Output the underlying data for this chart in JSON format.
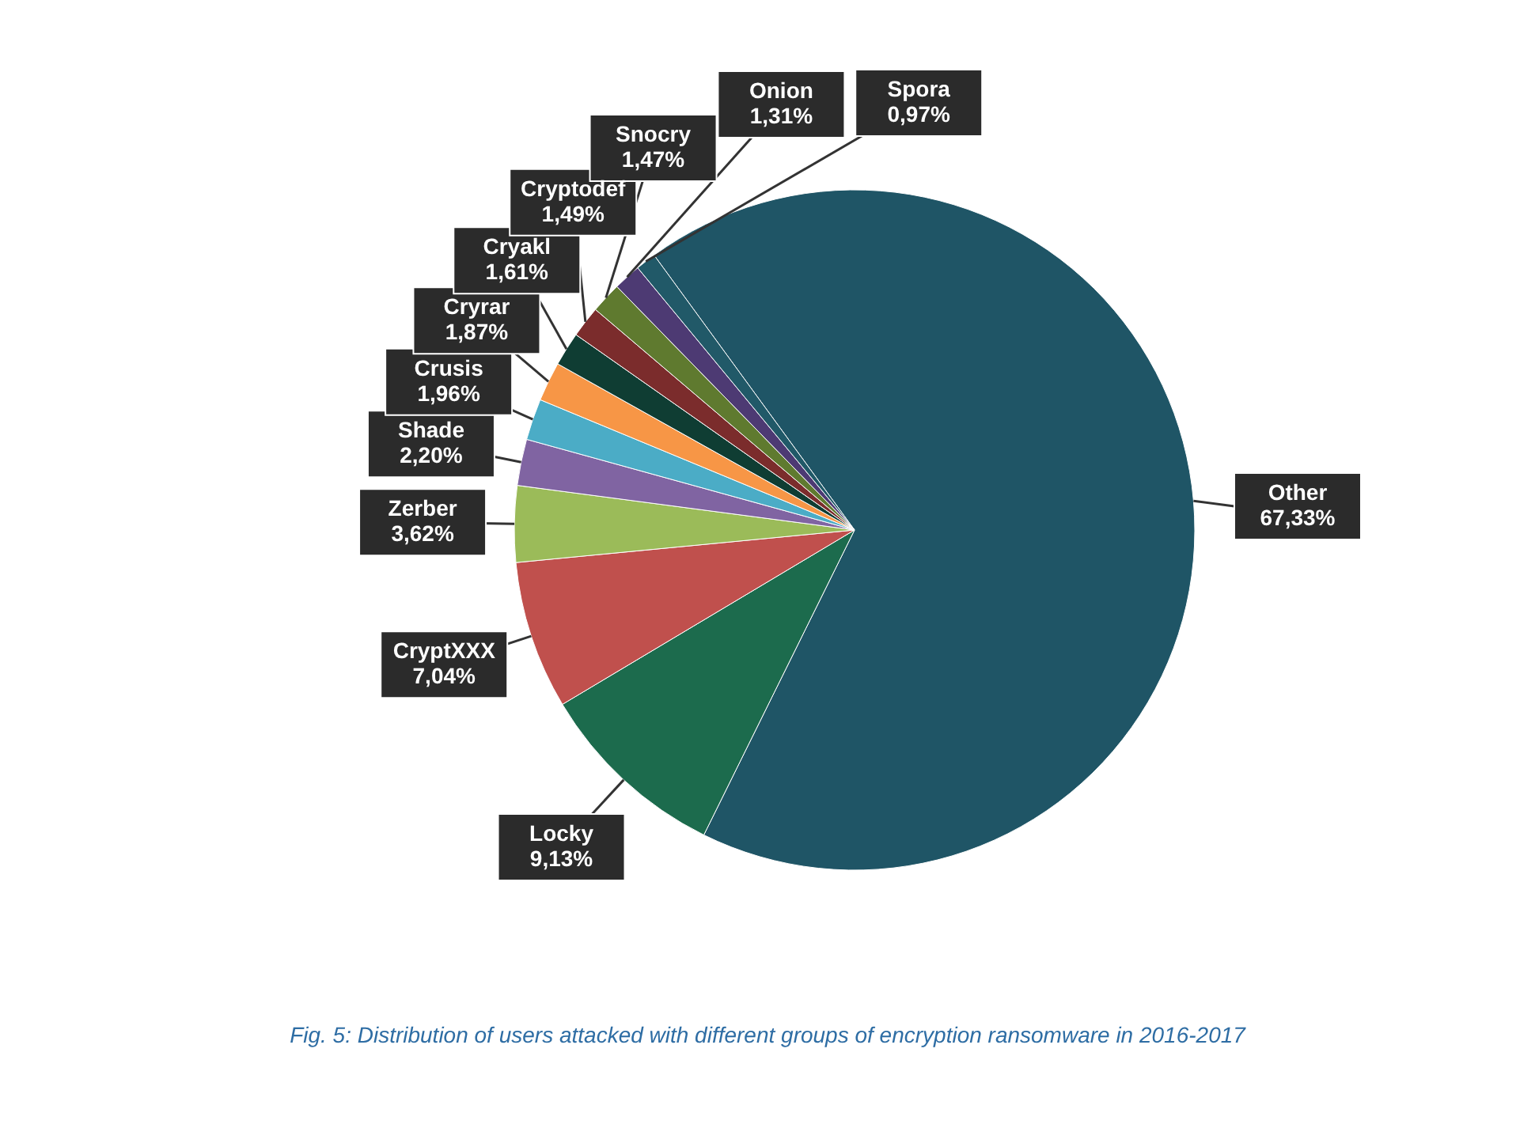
{
  "chart_data": {
    "type": "pie",
    "categories": [
      "Other",
      "Locky",
      "CryptXXX",
      "Zerber",
      "Shade",
      "Crusis",
      "Cryrar",
      "Cryakl",
      "Cryptodef",
      "Snocry",
      "Onion",
      "Spora"
    ],
    "values": [
      67.33,
      9.13,
      7.04,
      3.62,
      2.2,
      1.96,
      1.87,
      1.61,
      1.49,
      1.47,
      1.31,
      0.97
    ],
    "value_labels": [
      "67,33%",
      "9,13%",
      "7,04%",
      "3,62%",
      "2,20%",
      "1,96%",
      "1,87%",
      "1,61%",
      "1,49%",
      "1,47%",
      "1,31%",
      "0,97%"
    ],
    "colors": [
      "#1f5566",
      "#1c6b4d",
      "#c0504d",
      "#9bbb59",
      "#8064a2",
      "#4bacc6",
      "#f79646",
      "#0f3d33",
      "#7b2c2c",
      "#5f7a2f",
      "#4d3a73",
      "#215968"
    ],
    "annotations": [
      "Fig. 5: Distribution of users attacked with different groups of encryption ransomware in 2016-2017"
    ]
  }
}
